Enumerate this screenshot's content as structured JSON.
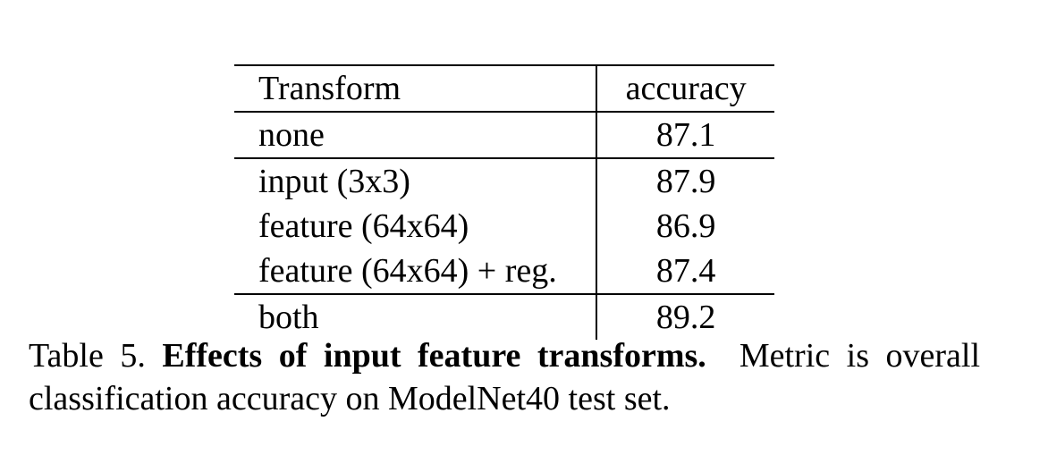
{
  "table": {
    "headers": [
      "Transform",
      "accuracy"
    ],
    "rows": [
      {
        "transform": "none",
        "accuracy": "87.1"
      },
      {
        "transform": "input (3x3)",
        "accuracy": "87.9"
      },
      {
        "transform": "feature (64x64)",
        "accuracy": "86.9"
      },
      {
        "transform": "feature (64x64) + reg.",
        "accuracy": "87.4"
      },
      {
        "transform": "both",
        "accuracy": "89.2"
      }
    ]
  },
  "caption": {
    "label": "Table 5.",
    "title": "Effects of input feature transforms.",
    "text_line1": "Metric is overall",
    "text_line2": "classification accuracy on ModelNet40 test set."
  }
}
